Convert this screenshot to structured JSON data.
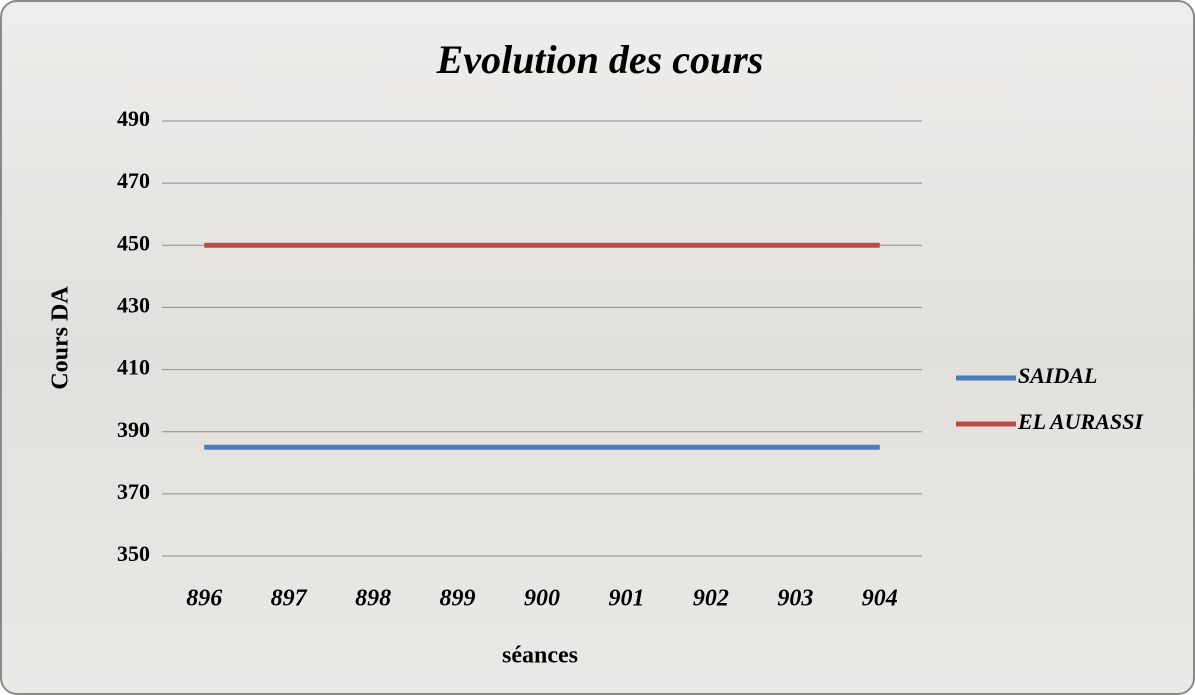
{
  "chart_data": {
    "type": "line",
    "title": "Evolution des cours",
    "x_label": "séances",
    "y_label": "Cours DA",
    "categories": [
      896,
      897,
      898,
      899,
      900,
      901,
      902,
      903,
      904
    ],
    "series": [
      {
        "name": "SAIDAL",
        "color": "#4a7ebb",
        "values": [
          385,
          385,
          385,
          385,
          385,
          385,
          385,
          385,
          385
        ]
      },
      {
        "name": "EL AURASSI",
        "color": "#be4b48",
        "values": [
          450,
          450,
          450,
          450,
          450,
          450,
          450,
          450,
          450
        ]
      }
    ],
    "ylim": [
      350,
      490
    ],
    "yticks": [
      350,
      370,
      390,
      410,
      430,
      450,
      470,
      490
    ],
    "grid": true,
    "legend": "right"
  }
}
